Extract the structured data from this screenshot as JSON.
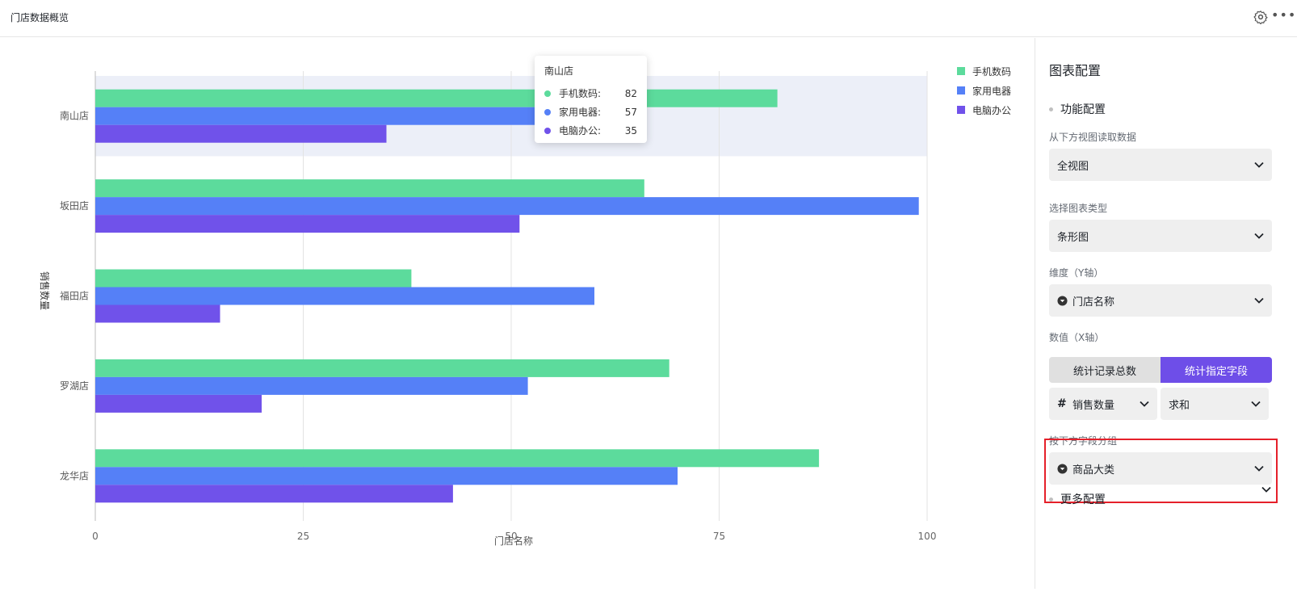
{
  "header": {
    "title": "门店数据概览",
    "settings_icon": "gear-icon",
    "more_icon": "more-icon"
  },
  "chart_data": {
    "type": "bar",
    "orientation": "horizontal",
    "categories": [
      "南山店",
      "坂田店",
      "福田店",
      "罗湖店",
      "龙华店"
    ],
    "series": [
      {
        "name": "手机数码",
        "color": "#5cdb9c",
        "values": [
          82,
          66,
          38,
          69,
          87
        ]
      },
      {
        "name": "家用电器",
        "color": "#5580f7",
        "values": [
          57,
          99,
          60,
          52,
          70
        ]
      },
      {
        "name": "电脑办公",
        "color": "#7052ea",
        "values": [
          35,
          51,
          15,
          20,
          43
        ]
      }
    ],
    "xlim": [
      0,
      100
    ],
    "xticks": [
      "0",
      "25",
      "50",
      "75",
      "100"
    ],
    "xlabel": "门店名称",
    "ylabel": "销售数量",
    "grid": true,
    "legend": "top-right",
    "highlighted_category": "南山店"
  },
  "tooltip": {
    "title": "南山店",
    "rows": [
      {
        "name": "手机数码:",
        "value": "82",
        "color": "#5cdb9c"
      },
      {
        "name": "家用电器:",
        "value": "57",
        "color": "#5580f7"
      },
      {
        "name": "电脑办公:",
        "value": "35",
        "color": "#7052ea"
      }
    ]
  },
  "panel": {
    "title": "图表配置",
    "section_function": "功能配置",
    "source_label": "从下方视图读取数据",
    "source_value": "全视图",
    "type_label": "选择图表类型",
    "type_value": "条形图",
    "dimension_label": "维度（Y轴）",
    "dimension_value": "门店名称",
    "value_label": "数值（X轴）",
    "seg_count": "统计记录总数",
    "seg_field": "统计指定字段",
    "field_value": "销售数量",
    "agg_value": "求和",
    "group_label": "按下方字段分组",
    "group_value": "商品大类",
    "section_more": "更多配置"
  }
}
